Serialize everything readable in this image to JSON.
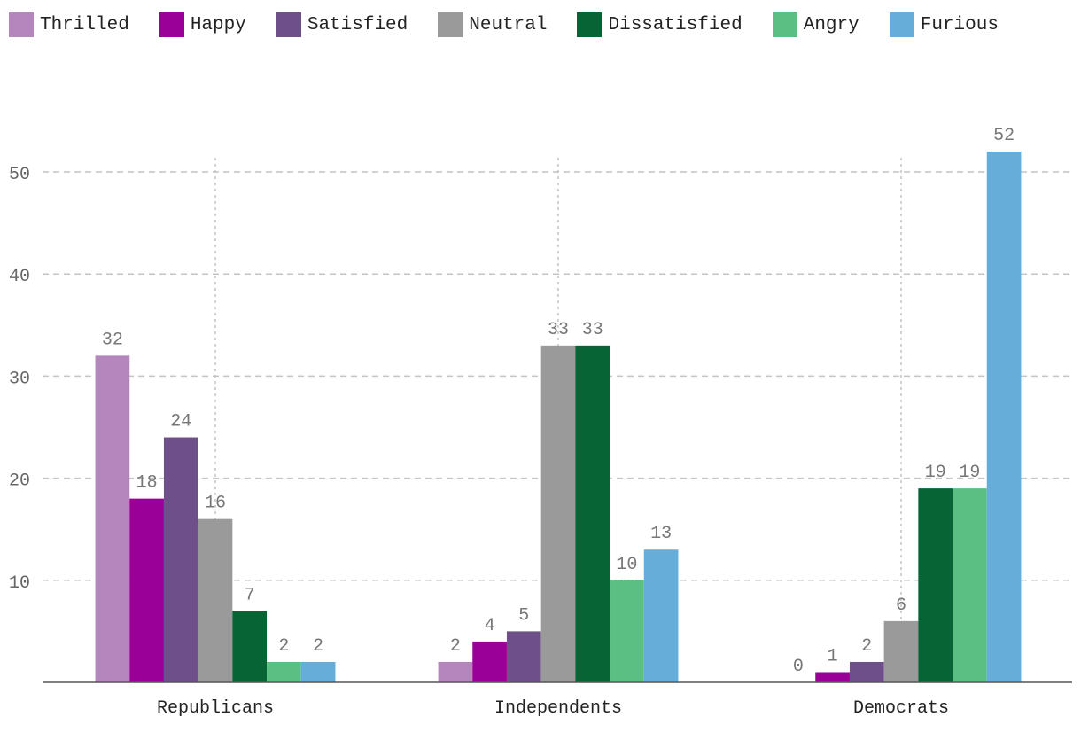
{
  "chart_data": {
    "type": "bar",
    "title": "",
    "xlabel": "",
    "ylabel": "",
    "ylim": [
      0,
      55
    ],
    "yticks": [
      10,
      20,
      30,
      40,
      50
    ],
    "grid": true,
    "legend_position": "top-left",
    "categories": [
      "Republicans",
      "Independents",
      "Democrats"
    ],
    "series": [
      {
        "name": "Thrilled",
        "color": "#b585bd",
        "values": [
          32,
          2,
          0
        ]
      },
      {
        "name": "Happy",
        "color": "#9b0096",
        "values": [
          18,
          4,
          1
        ]
      },
      {
        "name": "Satisfied",
        "color": "#6e4f8a",
        "values": [
          24,
          5,
          2
        ]
      },
      {
        "name": "Neutral",
        "color": "#9a9a9a",
        "values": [
          16,
          33,
          6
        ]
      },
      {
        "name": "Dissatisfied",
        "color": "#066435",
        "values": [
          7,
          33,
          19
        ]
      },
      {
        "name": "Angry",
        "color": "#5bbf83",
        "values": [
          2,
          10,
          19
        ]
      },
      {
        "name": "Furious",
        "color": "#66add9",
        "values": [
          2,
          13,
          52
        ]
      }
    ]
  }
}
